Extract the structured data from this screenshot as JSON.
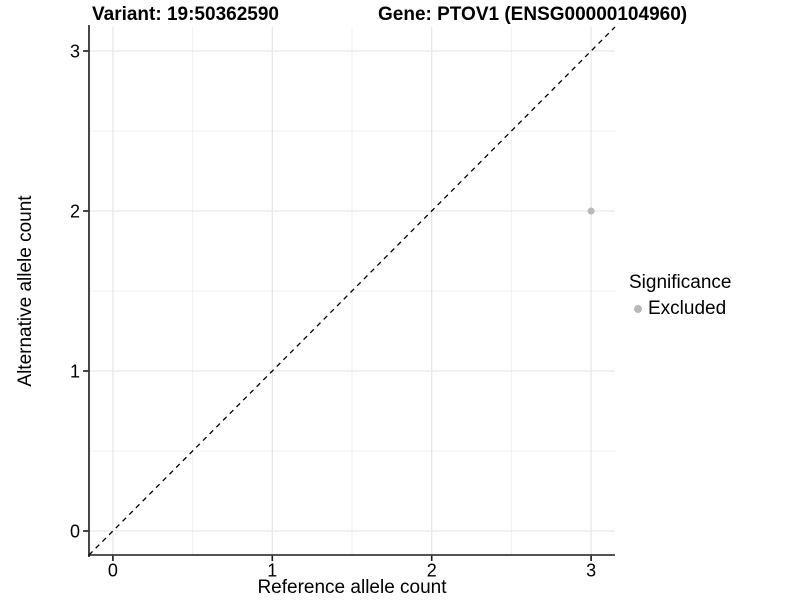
{
  "chart_data": {
    "type": "scatter",
    "title_left": "Variant: 19:50362590",
    "title_right": "Gene: PTOV1 (ENSG00000104960)",
    "xlabel": "Reference allele count",
    "ylabel": "Alternative allele count",
    "xlim": [
      -0.15,
      3.15
    ],
    "ylim": [
      -0.15,
      3.15
    ],
    "x_ticks": [
      0,
      1,
      2,
      3
    ],
    "y_ticks": [
      0,
      1,
      2,
      3
    ],
    "x_minor_ticks": [
      0.5,
      1.5,
      2.5
    ],
    "y_minor_ticks": [
      0.5,
      1.5,
      2.5
    ],
    "grid": "major+minor",
    "identity_line": {
      "style": "dashed",
      "from": [
        -0.15,
        -0.15
      ],
      "to": [
        3.15,
        3.15
      ],
      "color": "#000000"
    },
    "series": [
      {
        "name": "Excluded",
        "color": "#b9b9b9",
        "points": [
          {
            "x": 3,
            "y": 2
          }
        ]
      }
    ],
    "legend": {
      "title": "Significance",
      "position": "right",
      "items": [
        {
          "label": "Excluded",
          "color": "#b9b9b9",
          "marker": "circle"
        }
      ]
    },
    "colors": {
      "background": "#ffffff",
      "grid_major": "#e6e6e6",
      "grid_minor": "#f1f1f1",
      "axis": "#1a1a1a",
      "text": "#000000"
    }
  }
}
